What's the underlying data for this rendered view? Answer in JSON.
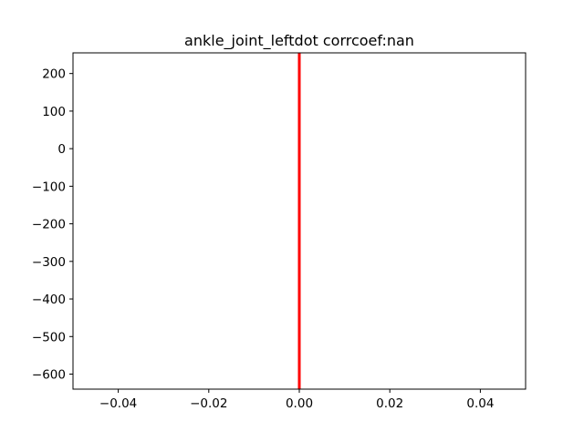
{
  "chart_data": {
    "type": "line",
    "title": "ankle_joint_leftdot corrcoef:nan",
    "xlabel": "",
    "ylabel": "",
    "xlim": [
      -0.05,
      0.05
    ],
    "ylim": [
      -640,
      255
    ],
    "x_ticks": [
      -0.04,
      -0.02,
      0.0,
      0.02,
      0.04
    ],
    "x_tick_labels": [
      "−0.04",
      "−0.02",
      "0.00",
      "0.02",
      "0.04"
    ],
    "y_ticks": [
      200,
      100,
      0,
      -100,
      -200,
      -300,
      -400,
      -500,
      -600
    ],
    "y_tick_labels": [
      "200",
      "100",
      "0",
      "−100",
      "−200",
      "−300",
      "−400",
      "−500",
      "−600"
    ],
    "grid": false,
    "series": [
      {
        "color": "#ff0000",
        "x": [
          0.0,
          0.0
        ],
        "y": [
          -640,
          255
        ]
      }
    ]
  }
}
